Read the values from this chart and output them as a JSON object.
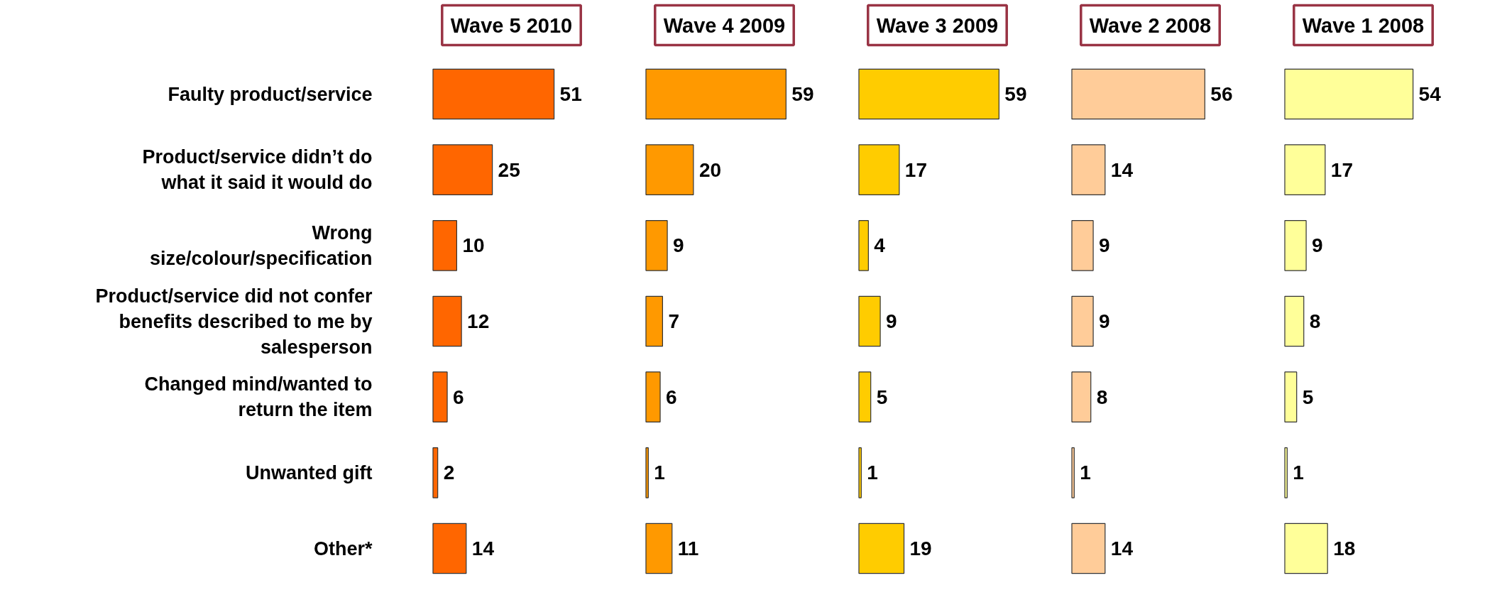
{
  "chart_data": [
    {
      "type": "bar",
      "orientation": "horizontal",
      "title": "Wave 5 2010",
      "categories": [
        "Faulty product/service",
        "Product/service didn’t do\nwhat it said it would do",
        "Wrong\nsize/colour/specification",
        "Product/service did not confer\nbenefits described to me by\nsalesperson",
        "Changed mind/wanted to\nreturn the item",
        "Unwanted gift",
        "Other*"
      ],
      "values": [
        51,
        25,
        10,
        12,
        6,
        2,
        14
      ],
      "color": "#ff6600",
      "data_labels": true,
      "tick_labels": "y",
      "grid": false
    },
    {
      "type": "bar",
      "orientation": "horizontal",
      "title": "Wave 4 2009",
      "categories": [
        null,
        null,
        null,
        null,
        null,
        null,
        null
      ],
      "values": [
        59,
        20,
        9,
        7,
        6,
        1,
        11
      ],
      "color": "#ff9900",
      "data_labels": true,
      "tick_labels": false,
      "grid": false
    },
    {
      "type": "bar",
      "orientation": "horizontal",
      "title": "Wave 3 2009",
      "categories": [
        null,
        null,
        null,
        null,
        null,
        null,
        null
      ],
      "values": [
        59,
        17,
        4,
        9,
        5,
        1,
        19
      ],
      "color": "#ffcc00",
      "data_labels": true,
      "tick_labels": false,
      "grid": false
    },
    {
      "type": "bar",
      "orientation": "horizontal",
      "title": "Wave 2 2008",
      "categories": [
        null,
        null,
        null,
        null,
        null,
        null,
        null
      ],
      "values": [
        56,
        14,
        9,
        9,
        8,
        1,
        14
      ],
      "color": "#ffcc99",
      "data_labels": true,
      "tick_labels": false,
      "grid": false
    },
    {
      "type": "bar",
      "orientation": "horizontal",
      "title": "Wave 1 2008",
      "categories": [
        null,
        null,
        null,
        null,
        null,
        null,
        null
      ],
      "values": [
        54,
        17,
        9,
        8,
        5,
        1,
        18
      ],
      "color": "#ffff99",
      "data_labels": true,
      "tick_labels": false,
      "grid": false
    }
  ]
}
